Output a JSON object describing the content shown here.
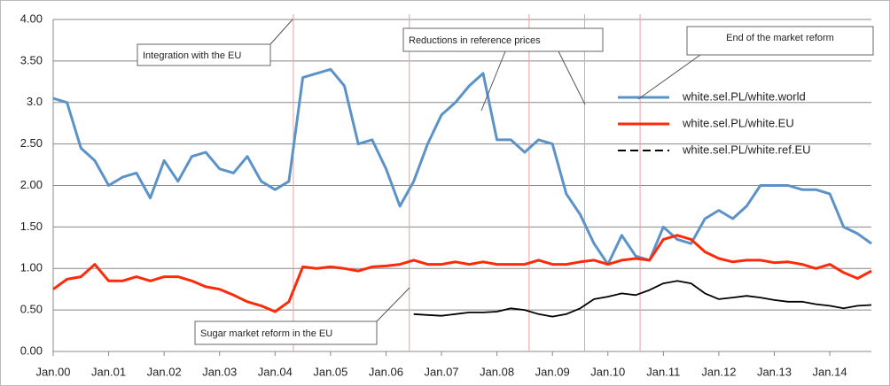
{
  "chart_data": {
    "type": "line",
    "x": [
      2000,
      2000.25,
      2000.5,
      2000.75,
      2001,
      2001.25,
      2001.5,
      2001.75,
      2002,
      2002.25,
      2002.5,
      2002.75,
      2003,
      2003.25,
      2003.5,
      2003.75,
      2004,
      2004.25,
      2004.5,
      2004.75,
      2005,
      2005.25,
      2005.5,
      2005.75,
      2006,
      2006.25,
      2006.5,
      2006.75,
      2007,
      2007.25,
      2007.5,
      2007.75,
      2008,
      2008.25,
      2008.5,
      2008.75,
      2009,
      2009.25,
      2009.5,
      2009.75,
      2010,
      2010.25,
      2010.5,
      2010.75,
      2011,
      2011.25,
      2011.5,
      2011.75,
      2012,
      2012.25,
      2012.5,
      2012.75,
      2013,
      2013.25,
      2013.5,
      2013.75,
      2014,
      2014.25,
      2014.5,
      2014.75
    ],
    "series": [
      {
        "name": "white.sel.PL/white.world",
        "color": "#5b93c9",
        "values": [
          3.05,
          3.0,
          2.45,
          2.3,
          2.0,
          2.1,
          2.15,
          1.85,
          2.3,
          2.05,
          2.35,
          2.4,
          2.2,
          2.15,
          2.35,
          2.05,
          1.95,
          2.05,
          3.3,
          3.35,
          3.4,
          3.2,
          2.5,
          2.55,
          2.2,
          1.75,
          2.05,
          2.5,
          2.85,
          3.0,
          3.2,
          3.35,
          2.55,
          2.55,
          2.4,
          2.55,
          2.5,
          1.9,
          1.65,
          1.3,
          1.05,
          1.4,
          1.15,
          1.1,
          1.5,
          1.35,
          1.3,
          1.6,
          1.7,
          1.6,
          1.75,
          2.0,
          2.0,
          2.0,
          1.95,
          1.95,
          1.9,
          1.5,
          1.42,
          1.3
        ]
      },
      {
        "name": "white.sel.PL/white.EU",
        "color": "#ff2a0a",
        "values": [
          0.75,
          0.87,
          0.9,
          1.05,
          0.85,
          0.85,
          0.9,
          0.85,
          0.9,
          0.9,
          0.85,
          0.78,
          0.75,
          0.68,
          0.6,
          0.55,
          0.48,
          0.6,
          1.02,
          1.0,
          1.02,
          1.0,
          0.97,
          1.02,
          1.03,
          1.05,
          1.1,
          1.05,
          1.05,
          1.08,
          1.05,
          1.08,
          1.05,
          1.05,
          1.05,
          1.1,
          1.05,
          1.05,
          1.08,
          1.1,
          1.05,
          1.1,
          1.12,
          1.1,
          1.35,
          1.4,
          1.35,
          1.2,
          1.12,
          1.08,
          1.1,
          1.1,
          1.07,
          1.08,
          1.05,
          1.0,
          1.05,
          0.95,
          0.88,
          0.97
        ]
      },
      {
        "name": "white.sel.PL/white.ref.EU",
        "color": "#000000",
        "legend_dashed": true,
        "values": [
          null,
          null,
          null,
          null,
          null,
          null,
          null,
          null,
          null,
          null,
          null,
          null,
          null,
          null,
          null,
          null,
          null,
          null,
          null,
          null,
          null,
          null,
          null,
          null,
          null,
          null,
          0.45,
          0.44,
          0.43,
          0.45,
          0.47,
          0.47,
          0.48,
          0.52,
          0.5,
          0.45,
          0.42,
          0.45,
          0.52,
          0.63,
          0.66,
          0.7,
          0.68,
          0.74,
          0.82,
          0.85,
          0.82,
          0.7,
          0.63,
          0.65,
          0.67,
          0.65,
          0.62,
          0.6,
          0.6,
          0.57,
          0.55,
          0.52,
          0.55,
          0.56
        ]
      }
    ],
    "xlim": [
      2000,
      2014.75
    ],
    "xticks": [
      {
        "value": 2000,
        "label": "Jan.00"
      },
      {
        "value": 2001,
        "label": "Jan.01"
      },
      {
        "value": 2002,
        "label": "Jan.02"
      },
      {
        "value": 2003,
        "label": "Jan.03"
      },
      {
        "value": 2004,
        "label": "Jan.04"
      },
      {
        "value": 2005,
        "label": "Jan.05"
      },
      {
        "value": 2006,
        "label": "Jan.06"
      },
      {
        "value": 2007,
        "label": "Jan.07"
      },
      {
        "value": 2008,
        "label": "Jan.08"
      },
      {
        "value": 2009,
        "label": "Jan.09"
      },
      {
        "value": 2010,
        "label": "Jan.10"
      },
      {
        "value": 2011,
        "label": "Jan.11"
      },
      {
        "value": 2012,
        "label": "Jan.12"
      },
      {
        "value": 2013,
        "label": "Jan.13"
      },
      {
        "value": 2014,
        "label": "Jan.14"
      }
    ],
    "ylim": [
      0,
      4
    ],
    "yticks": [
      {
        "value": 0,
        "label": "0.00"
      },
      {
        "value": 0.5,
        "label": "0.50"
      },
      {
        "value": 1,
        "label": "1.00"
      },
      {
        "value": 1.5,
        "label": "1.50"
      },
      {
        "value": 2,
        "label": "2.00"
      },
      {
        "value": 2.5,
        "label": "2.50"
      },
      {
        "value": 3,
        "label": "3.0"
      },
      {
        "value": 3.5,
        "label": "3.50"
      },
      {
        "value": 4,
        "label": "4.00"
      }
    ],
    "grid": true,
    "legend": "upper right",
    "event_lines": [
      2004.33,
      2006.42,
      2008.58,
      2009.58,
      2010.58
    ],
    "annotations": [
      "Integration with the EU",
      "Reductions in reference prices",
      "End of the market reform",
      "Sugar market reform in the EU"
    ]
  }
}
